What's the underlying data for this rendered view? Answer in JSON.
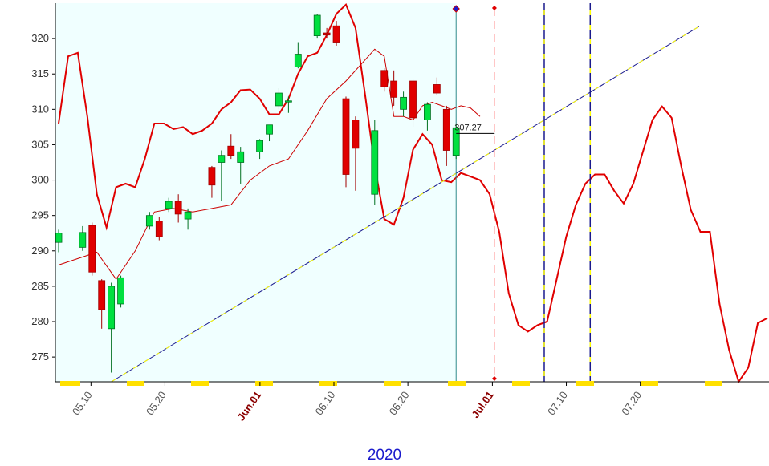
{
  "chart_data": {
    "type": "candlestick",
    "year_label": "2020",
    "price_readout": "307.27",
    "ylim": [
      271.5,
      325
    ],
    "yticks": [
      275,
      280,
      285,
      290,
      295,
      300,
      305,
      310,
      315,
      320
    ],
    "grid": false,
    "x_range": [
      0,
      63.5
    ],
    "x_ticks": [
      {
        "label": "05.10",
        "x": 2,
        "month": false
      },
      {
        "label": "05.20",
        "x": 9,
        "month": false
      },
      {
        "label": "Jun.01",
        "x": 18,
        "month": true
      },
      {
        "label": "06.10",
        "x": 25,
        "month": false
      },
      {
        "label": "06.20",
        "x": 32,
        "month": false
      },
      {
        "label": "Jul.01",
        "x": 40,
        "month": true
      },
      {
        "label": "07.10",
        "x": 47,
        "month": false
      },
      {
        "label": "07.20",
        "x": 54,
        "month": false
      }
    ],
    "candles": [
      {
        "x": 0.0,
        "open": 291.2,
        "high": 293.0,
        "low": 289.8,
        "close": 292.5
      },
      {
        "x": 2.5,
        "open": 290.5,
        "high": 293.5,
        "low": 290.0,
        "close": 292.6
      },
      {
        "x": 3.5,
        "open": 293.6,
        "high": 294.0,
        "low": 286.5,
        "close": 287.0
      },
      {
        "x": 4.5,
        "open": 285.8,
        "high": 286.0,
        "low": 279.0,
        "close": 281.7
      },
      {
        "x": 5.5,
        "open": 279.0,
        "high": 285.5,
        "low": 272.8,
        "close": 285.0
      },
      {
        "x": 6.5,
        "open": 282.5,
        "high": 286.5,
        "low": 282.0,
        "close": 286.2
      },
      {
        "x": 9.5,
        "open": 293.5,
        "high": 295.5,
        "low": 293.0,
        "close": 295.0
      },
      {
        "x": 10.5,
        "open": 294.2,
        "high": 294.8,
        "low": 291.5,
        "close": 292.0
      },
      {
        "x": 11.5,
        "open": 296.0,
        "high": 297.5,
        "low": 295.5,
        "close": 297.0
      },
      {
        "x": 12.5,
        "open": 297.0,
        "high": 298.0,
        "low": 294.0,
        "close": 295.2
      },
      {
        "x": 13.5,
        "open": 294.5,
        "high": 296.0,
        "low": 293.0,
        "close": 295.5
      },
      {
        "x": 16.0,
        "open": 301.8,
        "high": 302.0,
        "low": 297.5,
        "close": 299.3
      },
      {
        "x": 17.0,
        "open": 302.5,
        "high": 304.2,
        "low": 297.0,
        "close": 303.5
      },
      {
        "x": 18.0,
        "open": 304.8,
        "high": 306.5,
        "low": 303.0,
        "close": 303.5
      },
      {
        "x": 19.0,
        "open": 302.5,
        "high": 304.7,
        "low": 299.5,
        "close": 304.0
      },
      {
        "x": 21.0,
        "open": 304.0,
        "high": 305.8,
        "low": 303.0,
        "close": 305.6
      },
      {
        "x": 22.0,
        "open": 306.5,
        "high": 307.5,
        "low": 305.5,
        "close": 307.8
      },
      {
        "x": 23.0,
        "open": 310.5,
        "high": 313.0,
        "low": 310.0,
        "close": 312.3
      },
      {
        "x": 24.0,
        "open": 311.2,
        "high": 311.8,
        "low": 309.5,
        "close": 311.2
      },
      {
        "x": 25.0,
        "open": 316.0,
        "high": 319.5,
        "low": 315.8,
        "close": 317.8
      },
      {
        "x": 27.0,
        "open": 320.4,
        "high": 323.5,
        "low": 320.0,
        "close": 323.3
      },
      {
        "x": 28.0,
        "open": 320.8,
        "high": 321.5,
        "low": 320.0,
        "close": 320.5
      },
      {
        "x": 29.0,
        "open": 321.8,
        "high": 322.5,
        "low": 319.0,
        "close": 319.5
      },
      {
        "x": 30.0,
        "open": 311.5,
        "high": 311.8,
        "low": 299.0,
        "close": 300.8
      },
      {
        "x": 31.0,
        "open": 308.5,
        "high": 309.0,
        "low": 298.5,
        "close": 304.5
      },
      {
        "x": 33.0,
        "open": 298.0,
        "high": 308.5,
        "low": 296.5,
        "close": 307.0
      },
      {
        "x": 34.0,
        "open": 315.5,
        "high": 315.8,
        "low": 312.5,
        "close": 313.2
      },
      {
        "x": 35.0,
        "open": 314.0,
        "high": 315.5,
        "low": 310.5,
        "close": 311.7
      },
      {
        "x": 36.0,
        "open": 310.0,
        "high": 312.5,
        "low": 309.0,
        "close": 311.7
      },
      {
        "x": 37.0,
        "open": 314.0,
        "high": 314.2,
        "low": 307.5,
        "close": 308.8
      },
      {
        "x": 38.5,
        "open": 308.5,
        "high": 311.0,
        "low": 307.0,
        "close": 310.7
      },
      {
        "x": 39.5,
        "open": 313.5,
        "high": 314.5,
        "low": 312.0,
        "close": 312.3
      },
      {
        "x": 40.5,
        "open": 310.0,
        "high": 310.5,
        "low": 302.0,
        "close": 304.2
      },
      {
        "x": 41.5,
        "open": 303.5,
        "high": 308.0,
        "low": 303.0,
        "close": 307.4
      }
    ],
    "bands": {
      "upper": [
        [
          0,
          308
        ],
        [
          1,
          317.5
        ],
        [
          2,
          318
        ],
        [
          3,
          309
        ],
        [
          4,
          298
        ],
        [
          5,
          293.3
        ],
        [
          6,
          299
        ],
        [
          7,
          299.5
        ],
        [
          8,
          299
        ],
        [
          9,
          303
        ],
        [
          10,
          308
        ],
        [
          11,
          308
        ],
        [
          12,
          307.2
        ],
        [
          13,
          307.5
        ],
        [
          14,
          306.5
        ],
        [
          15,
          307
        ],
        [
          16,
          308
        ],
        [
          17,
          310
        ],
        [
          18,
          311
        ],
        [
          19,
          312.7
        ],
        [
          20,
          312.8
        ],
        [
          21,
          311.5
        ],
        [
          22,
          309.3
        ],
        [
          23,
          309.3
        ],
        [
          24,
          311.5
        ],
        [
          25,
          315
        ],
        [
          26,
          317.5
        ],
        [
          27,
          318
        ],
        [
          28,
          320.5
        ],
        [
          29,
          323.5
        ],
        [
          30,
          324.8
        ],
        [
          31,
          321.5
        ],
        [
          32,
          312
        ],
        [
          33,
          302
        ],
        [
          34,
          294.5
        ],
        [
          35,
          293.7
        ],
        [
          36,
          297.5
        ],
        [
          37,
          304.3
        ],
        [
          38,
          306.5
        ],
        [
          39,
          305
        ],
        [
          40,
          300
        ],
        [
          41,
          299.7
        ],
        [
          42,
          301
        ],
        [
          43,
          300.5
        ],
        [
          44,
          300
        ],
        [
          45,
          298
        ],
        [
          46,
          292.7
        ],
        [
          47,
          284
        ],
        [
          48,
          279.5
        ],
        [
          49,
          278.6
        ],
        [
          50,
          279.5
        ],
        [
          51,
          280
        ],
        [
          52,
          286
        ],
        [
          53,
          292
        ],
        [
          54,
          296.5
        ],
        [
          55,
          299.5
        ],
        [
          56,
          300.8
        ],
        [
          57,
          300.8
        ],
        [
          58,
          298.5
        ],
        [
          59,
          296.7
        ],
        [
          60,
          299.5
        ],
        [
          61,
          304
        ],
        [
          62,
          308.5
        ],
        [
          63,
          310.4
        ],
        [
          64,
          308.8
        ],
        [
          65,
          302
        ],
        [
          66,
          295.8
        ],
        [
          67,
          292.7
        ],
        [
          68,
          292.7
        ],
        [
          69,
          282.5
        ],
        [
          70,
          276
        ],
        [
          71,
          271.5
        ],
        [
          72,
          273.5
        ],
        [
          73,
          279.8
        ],
        [
          74,
          280.5
        ]
      ],
      "middle": [
        [
          0,
          288
        ],
        [
          4,
          289.8
        ],
        [
          6,
          286
        ],
        [
          8,
          290
        ],
        [
          10,
          295.5
        ],
        [
          12,
          296
        ],
        [
          14,
          295.5
        ],
        [
          16,
          296
        ],
        [
          18,
          296.5
        ],
        [
          20,
          300
        ],
        [
          22,
          302
        ],
        [
          24,
          303
        ],
        [
          26,
          307
        ],
        [
          28,
          311.5
        ],
        [
          30,
          314
        ],
        [
          32,
          317
        ],
        [
          33,
          318.5
        ],
        [
          34,
          317.5
        ],
        [
          35,
          309
        ],
        [
          36,
          309
        ],
        [
          37,
          308.5
        ],
        [
          38,
          310.5
        ],
        [
          39,
          311
        ],
        [
          40,
          310.5
        ],
        [
          41,
          310
        ],
        [
          42,
          310.5
        ],
        [
          43,
          310.2
        ],
        [
          44,
          309
        ]
      ],
      "lower_start_index": 0
    },
    "trendline": {
      "from": [
        5.5,
        271.5
      ],
      "to": [
        63.5,
        320.8
      ]
    },
    "vlines": [
      {
        "x": 41.5,
        "style": "solid",
        "color": "#2e8b8b"
      },
      {
        "x": 45.5,
        "style": "dashed",
        "color": "#ff8080"
      },
      {
        "x": 50.7,
        "style": "dashed-navy-yellow",
        "color": "#1a1a8c"
      },
      {
        "x": 55.5,
        "style": "dashed-navy-yellow",
        "color": "#1a1a8c"
      }
    ],
    "shaded_until_x": 41.5,
    "x_scale_note": "index"
  }
}
